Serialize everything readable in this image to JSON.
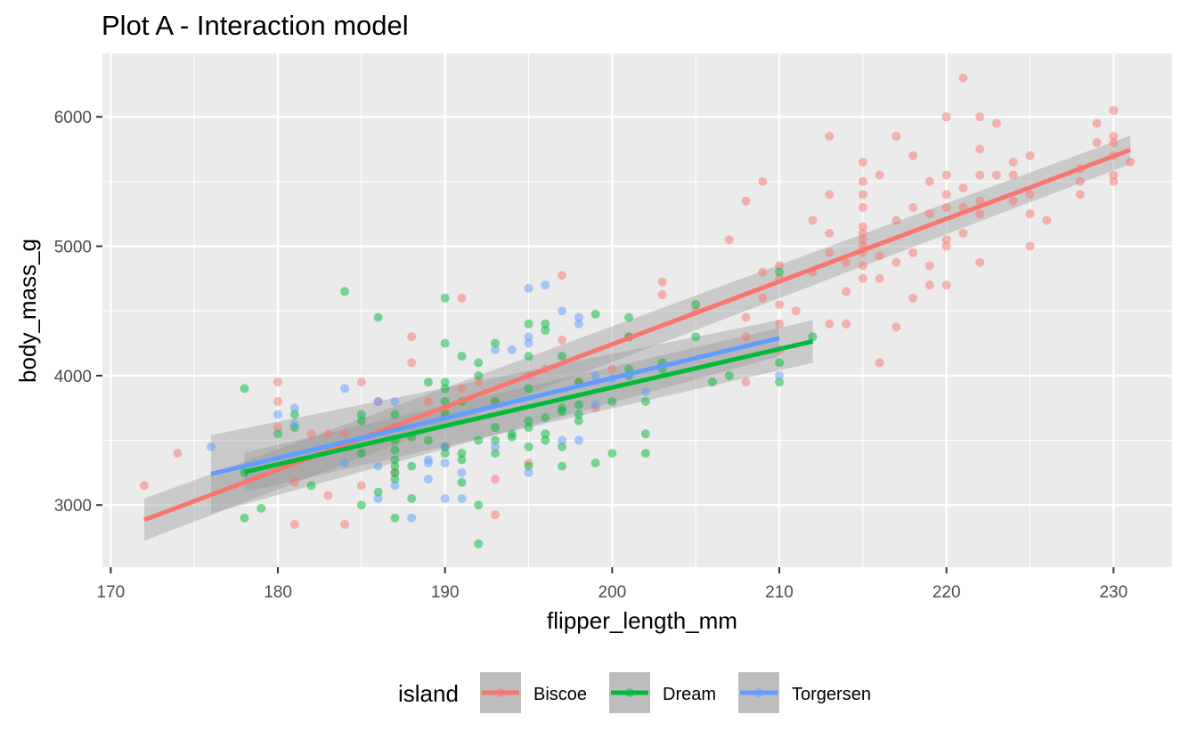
{
  "chart_data": {
    "type": "scatter",
    "title": "Plot A - Interaction model",
    "xlabel": "flipper_length_mm",
    "ylabel": "body_mass_g",
    "xlim": [
      169.5,
      233.5
    ],
    "ylim": [
      2520,
      6490
    ],
    "x_ticks": [
      170,
      180,
      190,
      200,
      210,
      220,
      230
    ],
    "y_ticks": [
      3000,
      4000,
      5000,
      6000
    ],
    "grid": true,
    "legend": {
      "title": "island",
      "position": "bottom"
    },
    "series": [
      {
        "name": "Biscoe",
        "color": "#F8766D",
        "fit": {
          "x": [
            172,
            231
          ],
          "y": [
            2885,
            5745
          ]
        },
        "band": {
          "x": [
            172,
            231
          ],
          "upper": [
            3050,
            5855
          ],
          "lower": [
            2725,
            5635
          ]
        },
        "points": [
          [
            172,
            3150
          ],
          [
            174,
            3400
          ],
          [
            180,
            3950
          ],
          [
            180,
            3800
          ],
          [
            180,
            3600
          ],
          [
            181,
            3175
          ],
          [
            181,
            2850
          ],
          [
            182,
            3550
          ],
          [
            183,
            3550
          ],
          [
            183,
            3075
          ],
          [
            184,
            2850
          ],
          [
            184,
            3550
          ],
          [
            185,
            3950
          ],
          [
            185,
            3150
          ],
          [
            186,
            3800
          ],
          [
            187,
            3250
          ],
          [
            188,
            4300
          ],
          [
            188,
            4100
          ],
          [
            189,
            3800
          ],
          [
            190,
            3450
          ],
          [
            190,
            3725
          ],
          [
            191,
            4600
          ],
          [
            191,
            3900
          ],
          [
            192,
            3950
          ],
          [
            193,
            3800
          ],
          [
            193,
            3200
          ],
          [
            193,
            2925
          ],
          [
            195,
            4000
          ],
          [
            195,
            3325
          ],
          [
            196,
            4050
          ],
          [
            197,
            4775
          ],
          [
            197,
            4275
          ],
          [
            198,
            3950
          ],
          [
            199,
            3750
          ],
          [
            200,
            4050
          ],
          [
            201,
            4300
          ],
          [
            203,
            4725
          ],
          [
            203,
            4625
          ],
          [
            205,
            4500
          ],
          [
            207,
            5050
          ],
          [
            208,
            5350
          ],
          [
            208,
            4450
          ],
          [
            208,
            4300
          ],
          [
            208,
            3950
          ],
          [
            209,
            5500
          ],
          [
            209,
            4800
          ],
          [
            209,
            4600
          ],
          [
            210,
            4850
          ],
          [
            210,
            4750
          ],
          [
            210,
            4550
          ],
          [
            210,
            4400
          ],
          [
            210,
            4200
          ],
          [
            211,
            4500
          ],
          [
            212,
            4800
          ],
          [
            212,
            5200
          ],
          [
            213,
            5850
          ],
          [
            213,
            5400
          ],
          [
            213,
            5100
          ],
          [
            213,
            4950
          ],
          [
            213,
            4400
          ],
          [
            214,
            4650
          ],
          [
            214,
            4400
          ],
          [
            214,
            4875
          ],
          [
            215,
            5650
          ],
          [
            215,
            5500
          ],
          [
            215,
            5400
          ],
          [
            215,
            5300
          ],
          [
            215,
            5150
          ],
          [
            215,
            5100
          ],
          [
            215,
            5050
          ],
          [
            215,
            5000
          ],
          [
            215,
            4950
          ],
          [
            215,
            4850
          ],
          [
            215,
            4750
          ],
          [
            216,
            5550
          ],
          [
            216,
            4750
          ],
          [
            216,
            4925
          ],
          [
            216,
            4100
          ],
          [
            217,
            5850
          ],
          [
            217,
            5200
          ],
          [
            217,
            4875
          ],
          [
            217,
            4375
          ],
          [
            218,
            5700
          ],
          [
            218,
            5300
          ],
          [
            218,
            4950
          ],
          [
            218,
            4600
          ],
          [
            219,
            5500
          ],
          [
            219,
            5250
          ],
          [
            219,
            4850
          ],
          [
            219,
            4700
          ],
          [
            220,
            6000
          ],
          [
            220,
            5550
          ],
          [
            220,
            5400
          ],
          [
            220,
            5300
          ],
          [
            220,
            5050
          ],
          [
            220,
            5000
          ],
          [
            220,
            4700
          ],
          [
            221,
            6300
          ],
          [
            221,
            5450
          ],
          [
            221,
            5300
          ],
          [
            221,
            5100
          ],
          [
            222,
            6000
          ],
          [
            222,
            5750
          ],
          [
            222,
            5550
          ],
          [
            222,
            5350
          ],
          [
            222,
            5250
          ],
          [
            222,
            4875
          ],
          [
            223,
            5950
          ],
          [
            223,
            5550
          ],
          [
            224,
            5650
          ],
          [
            224,
            5550
          ],
          [
            224,
            5350
          ],
          [
            225,
            5700
          ],
          [
            225,
            5400
          ],
          [
            225,
            5250
          ],
          [
            225,
            5000
          ],
          [
            226,
            5200
          ],
          [
            228,
            5600
          ],
          [
            228,
            5500
          ],
          [
            228,
            5400
          ],
          [
            229,
            5950
          ],
          [
            229,
            5800
          ],
          [
            230,
            6050
          ],
          [
            230,
            5850
          ],
          [
            230,
            5800
          ],
          [
            230,
            5700
          ],
          [
            230,
            5550
          ],
          [
            230,
            5500
          ],
          [
            231,
            5650
          ]
        ]
      },
      {
        "name": "Dream",
        "color": "#00BA38",
        "fit": {
          "x": [
            178,
            212
          ],
          "y": [
            3255,
            4265
          ]
        },
        "band": {
          "x": [
            178,
            212
          ],
          "upper": [
            3405,
            4430
          ],
          "lower": [
            3100,
            4100
          ]
        },
        "points": [
          [
            178,
            3900
          ],
          [
            178,
            3250
          ],
          [
            178,
            2900
          ],
          [
            179,
            2975
          ],
          [
            180,
            3550
          ],
          [
            181,
            3700
          ],
          [
            181,
            3600
          ],
          [
            182,
            3150
          ],
          [
            184,
            4650
          ],
          [
            185,
            3700
          ],
          [
            185,
            3650
          ],
          [
            185,
            3400
          ],
          [
            185,
            3000
          ],
          [
            186,
            4450
          ],
          [
            186,
            3100
          ],
          [
            187,
            3700
          ],
          [
            187,
            3600
          ],
          [
            187,
            3500
          ],
          [
            187,
            3425
          ],
          [
            187,
            3350
          ],
          [
            187,
            3300
          ],
          [
            187,
            3250
          ],
          [
            187,
            3200
          ],
          [
            187,
            2900
          ],
          [
            188,
            3525
          ],
          [
            188,
            3300
          ],
          [
            188,
            3050
          ],
          [
            189,
            3950
          ],
          [
            189,
            3500
          ],
          [
            190,
            4600
          ],
          [
            190,
            4250
          ],
          [
            190,
            3950
          ],
          [
            190,
            3900
          ],
          [
            190,
            3800
          ],
          [
            190,
            3700
          ],
          [
            190,
            3450
          ],
          [
            190,
            3400
          ],
          [
            191,
            4150
          ],
          [
            191,
            3800
          ],
          [
            191,
            3350
          ],
          [
            191,
            3400
          ],
          [
            191,
            3175
          ],
          [
            192,
            4100
          ],
          [
            192,
            4000
          ],
          [
            192,
            3500
          ],
          [
            192,
            3000
          ],
          [
            192,
            2700
          ],
          [
            193,
            4250
          ],
          [
            193,
            3800
          ],
          [
            193,
            3600
          ],
          [
            193,
            3500
          ],
          [
            193,
            3400
          ],
          [
            194,
            3525
          ],
          [
            194,
            3550
          ],
          [
            195,
            4400
          ],
          [
            195,
            4150
          ],
          [
            195,
            3900
          ],
          [
            195,
            3650
          ],
          [
            195,
            3600
          ],
          [
            195,
            3450
          ],
          [
            195,
            3300
          ],
          [
            196,
            4400
          ],
          [
            196,
            4350
          ],
          [
            196,
            3675
          ],
          [
            196,
            3550
          ],
          [
            196,
            3500
          ],
          [
            197,
            4150
          ],
          [
            197,
            3750
          ],
          [
            197,
            3725
          ],
          [
            197,
            3450
          ],
          [
            197,
            3300
          ],
          [
            198,
            3950
          ],
          [
            198,
            3700
          ],
          [
            198,
            3650
          ],
          [
            198,
            3775
          ],
          [
            199,
            4475
          ],
          [
            199,
            3325
          ],
          [
            200,
            3800
          ],
          [
            200,
            3400
          ],
          [
            201,
            4450
          ],
          [
            201,
            4300
          ],
          [
            201,
            4050
          ],
          [
            201,
            4000
          ],
          [
            202,
            3800
          ],
          [
            202,
            3550
          ],
          [
            202,
            3400
          ],
          [
            203,
            4100
          ],
          [
            203,
            4050
          ],
          [
            205,
            4550
          ],
          [
            205,
            4300
          ],
          [
            206,
            3950
          ],
          [
            207,
            4000
          ],
          [
            210,
            4800
          ],
          [
            210,
            4100
          ],
          [
            210,
            3950
          ],
          [
            212,
            4300
          ]
        ]
      },
      {
        "name": "Torgersen",
        "color": "#619CFF",
        "fit": {
          "x": [
            176,
            210
          ],
          "y": [
            3240,
            4290
          ]
        },
        "band": {
          "x": [
            176,
            210
          ],
          "upper": [
            3540,
            4430
          ],
          "lower": [
            2935,
            4150
          ]
        },
        "points": [
          [
            176,
            3450
          ],
          [
            180,
            3700
          ],
          [
            181,
            3750
          ],
          [
            181,
            3625
          ],
          [
            184,
            3900
          ],
          [
            184,
            3325
          ],
          [
            186,
            3800
          ],
          [
            186,
            3300
          ],
          [
            186,
            3050
          ],
          [
            187,
            3800
          ],
          [
            187,
            3150
          ],
          [
            188,
            2900
          ],
          [
            189,
            3325
          ],
          [
            189,
            3350
          ],
          [
            189,
            3200
          ],
          [
            190,
            3450
          ],
          [
            190,
            3325
          ],
          [
            190,
            3050
          ],
          [
            191,
            3250
          ],
          [
            191,
            3050
          ],
          [
            193,
            4200
          ],
          [
            193,
            3450
          ],
          [
            194,
            4200
          ],
          [
            195,
            4675
          ],
          [
            195,
            4300
          ],
          [
            195,
            4250
          ],
          [
            195,
            3250
          ],
          [
            196,
            4700
          ],
          [
            197,
            4500
          ],
          [
            197,
            3500
          ],
          [
            198,
            4450
          ],
          [
            198,
            4400
          ],
          [
            198,
            3500
          ],
          [
            199,
            4000
          ],
          [
            199,
            3775
          ],
          [
            200,
            3975
          ],
          [
            201,
            4000
          ],
          [
            202,
            3875
          ],
          [
            210,
            4000
          ]
        ]
      }
    ]
  }
}
